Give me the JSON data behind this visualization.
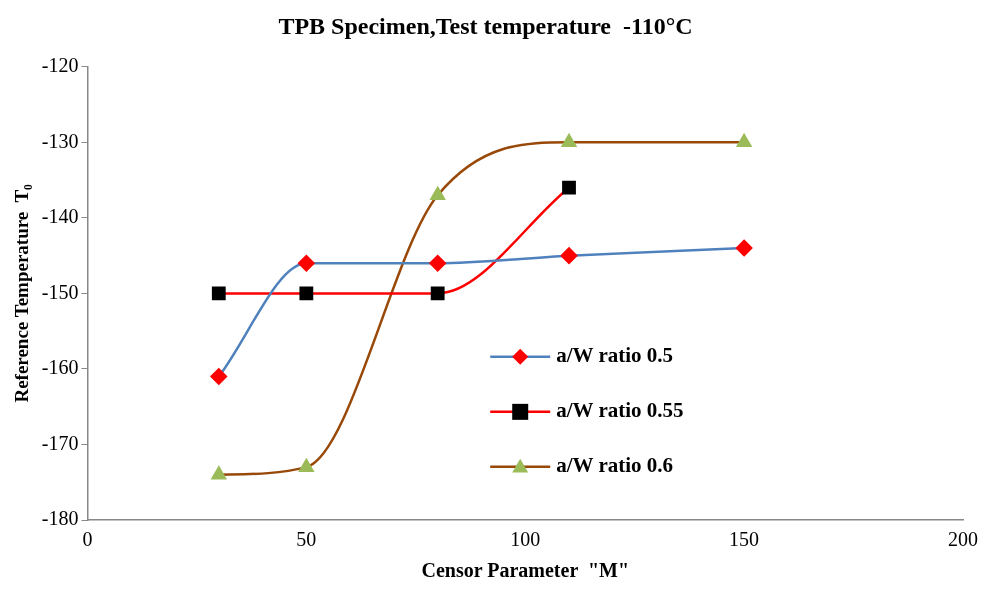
{
  "chart_data": {
    "type": "line",
    "title": "TPB Specimen,Test temperature  -110°C",
    "xlabel": "Censor Parameter  \"M\"",
    "ylabel": "Reference Temperature  T₀",
    "x": [
      30,
      50,
      80,
      110,
      150
    ],
    "series": [
      {
        "name": "a/W ratio 0.5",
        "color": "#4f81bd",
        "colors": [
          "#ff0000",
          "#ff0000",
          "#ff0000",
          "#ff0000",
          "#ff0000"
        ],
        "marker": "diamond",
        "values": [
          -161,
          -146,
          -146,
          -145,
          -144
        ]
      },
      {
        "name": "a/W ratio 0.55",
        "color": "#ff0000",
        "colors": [
          "#000000",
          "#000000",
          "#000000",
          "#000000"
        ],
        "marker": "square",
        "x": [
          30,
          50,
          80,
          110
        ],
        "values": [
          -150,
          -150,
          -150,
          -136
        ]
      },
      {
        "name": "a/W ratio 0.6",
        "color": "#984807",
        "colors": [
          "#9bbb59",
          "#9bbb59",
          "#9bbb59",
          "#9bbb59",
          "#9bbb59"
        ],
        "marker": "triangle",
        "values": [
          -174,
          -173,
          -137,
          -130,
          -130
        ]
      }
    ],
    "xlim": [
      0,
      200
    ],
    "xticks": [
      0,
      50,
      100,
      150,
      200
    ],
    "ylim": [
      -180,
      -120
    ],
    "yticks": [
      -180,
      -170,
      -160,
      -150,
      -140,
      -130,
      -120
    ],
    "grid": false,
    "legend": "bottom right",
    "line_style": "solid"
  }
}
